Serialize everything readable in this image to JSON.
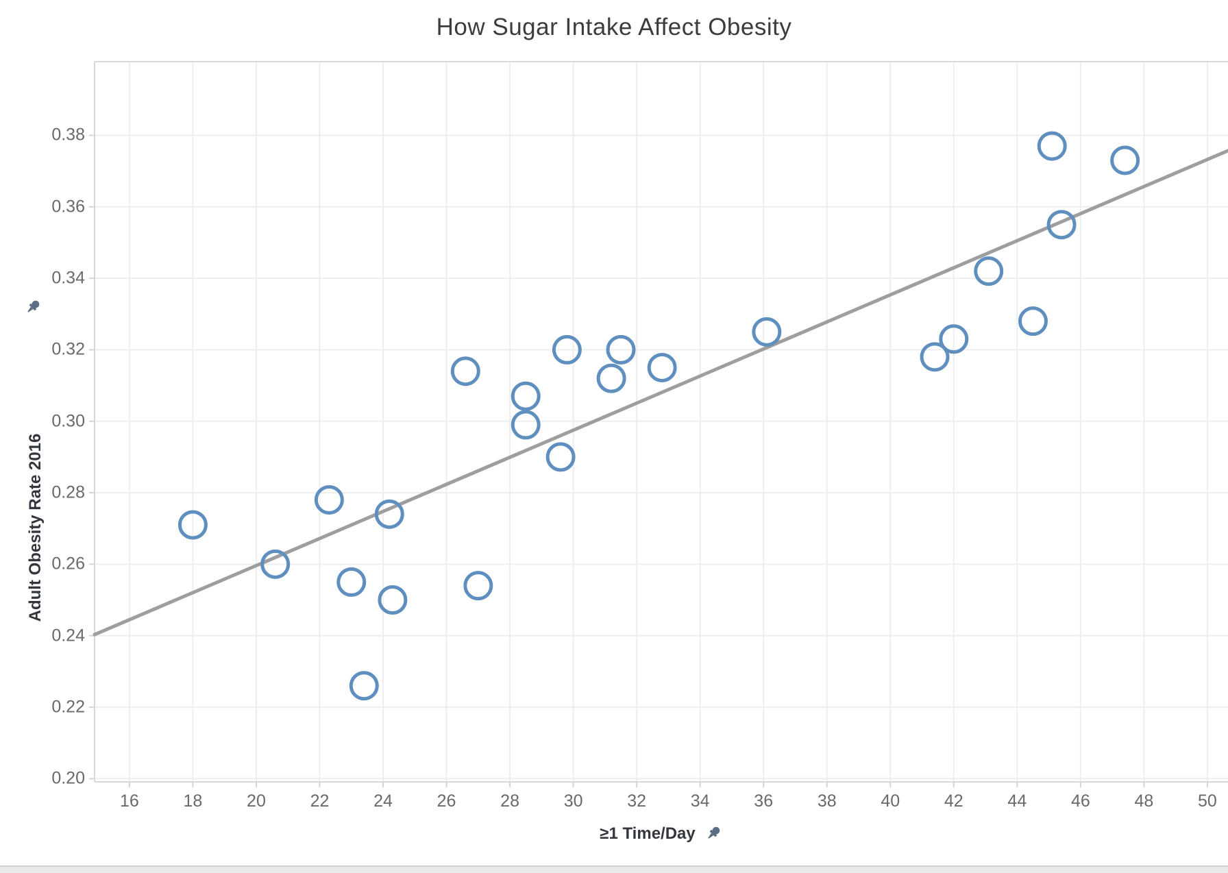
{
  "chart_data": {
    "type": "scatter",
    "title": "How Sugar Intake Affect Obesity",
    "xlabel": "≥1 Time/Day",
    "ylabel": "Adult Obesity Rate 2016",
    "x_ticks": [
      16,
      18,
      20,
      22,
      24,
      26,
      28,
      30,
      32,
      34,
      36,
      38,
      40,
      42,
      44,
      46,
      48,
      50
    ],
    "y_ticks": [
      0.2,
      0.22,
      0.24,
      0.26,
      0.28,
      0.3,
      0.32,
      0.34,
      0.36,
      0.38
    ],
    "xlim": [
      14.9,
      50.65
    ],
    "ylim": [
      0.1991,
      0.4006
    ],
    "grid": true,
    "legend": false,
    "points": [
      {
        "x": 18.0,
        "y": 0.271
      },
      {
        "x": 20.6,
        "y": 0.26
      },
      {
        "x": 22.3,
        "y": 0.278
      },
      {
        "x": 23.0,
        "y": 0.255
      },
      {
        "x": 23.4,
        "y": 0.226
      },
      {
        "x": 24.2,
        "y": 0.274
      },
      {
        "x": 24.3,
        "y": 0.25
      },
      {
        "x": 26.6,
        "y": 0.314
      },
      {
        "x": 27.0,
        "y": 0.254
      },
      {
        "x": 28.5,
        "y": 0.307
      },
      {
        "x": 28.5,
        "y": 0.299
      },
      {
        "x": 29.6,
        "y": 0.29
      },
      {
        "x": 29.8,
        "y": 0.32
      },
      {
        "x": 31.2,
        "y": 0.312
      },
      {
        "x": 31.5,
        "y": 0.32
      },
      {
        "x": 32.8,
        "y": 0.315
      },
      {
        "x": 36.1,
        "y": 0.325
      },
      {
        "x": 41.4,
        "y": 0.318
      },
      {
        "x": 42.0,
        "y": 0.323
      },
      {
        "x": 43.1,
        "y": 0.342
      },
      {
        "x": 44.5,
        "y": 0.328
      },
      {
        "x": 45.1,
        "y": 0.377
      },
      {
        "x": 45.4,
        "y": 0.355
      },
      {
        "x": 47.4,
        "y": 0.373
      }
    ],
    "trend_line": {
      "x1": 14.9,
      "y1": 0.2403,
      "x2": 50.65,
      "y2": 0.3757
    }
  },
  "colors": {
    "marker_stroke": "#5e8fbf",
    "trend": "#9e9e9e",
    "grid": "#eeeeee",
    "pane_border": "#d9d9d9",
    "tick_mark": "#d4d4d4",
    "pin": "#5c6e84"
  },
  "icons": {
    "y_axis_pin": "pin-icon",
    "x_axis_pin": "pin-icon"
  }
}
